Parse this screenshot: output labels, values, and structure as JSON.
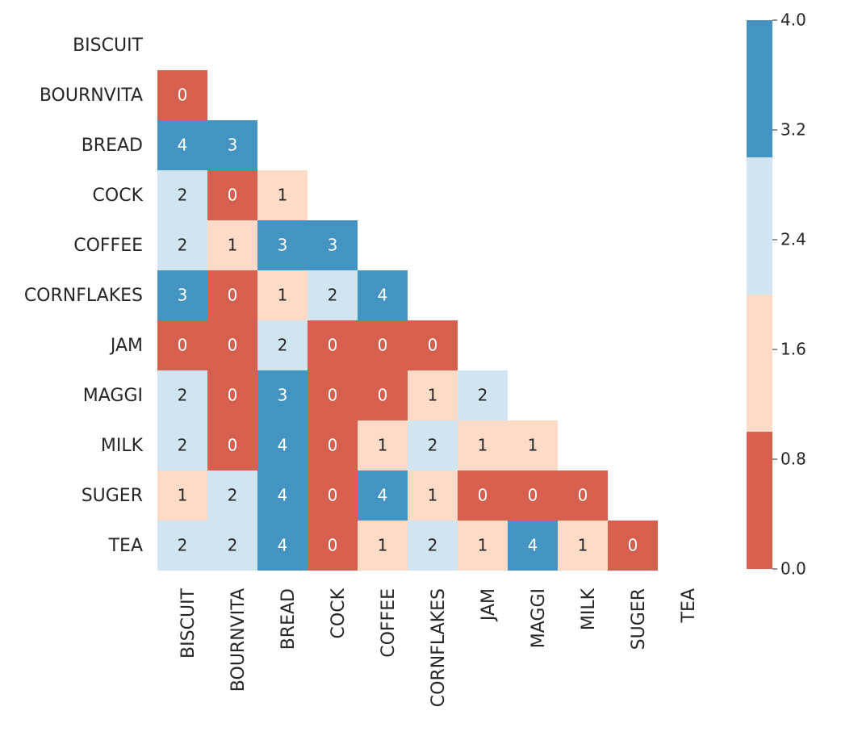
{
  "chart_data": {
    "type": "heatmap",
    "title": "",
    "xlabel": "",
    "ylabel": "",
    "categories": [
      "BISCUIT",
      "BOURNVITA",
      "BREAD",
      "COCK",
      "COFFEE",
      "CORNFLAKES",
      "JAM",
      "MAGGI",
      "MILK",
      "SUGER",
      "TEA"
    ],
    "matrix": [
      [
        null,
        null,
        null,
        null,
        null,
        null,
        null,
        null,
        null,
        null,
        null
      ],
      [
        0,
        null,
        null,
        null,
        null,
        null,
        null,
        null,
        null,
        null,
        null
      ],
      [
        4,
        3,
        null,
        null,
        null,
        null,
        null,
        null,
        null,
        null,
        null
      ],
      [
        2,
        0,
        1,
        null,
        null,
        null,
        null,
        null,
        null,
        null,
        null
      ],
      [
        2,
        1,
        3,
        3,
        null,
        null,
        null,
        null,
        null,
        null,
        null
      ],
      [
        3,
        0,
        1,
        2,
        4,
        null,
        null,
        null,
        null,
        null,
        null
      ],
      [
        0,
        0,
        2,
        0,
        0,
        0,
        null,
        null,
        null,
        null,
        null
      ],
      [
        2,
        0,
        3,
        0,
        0,
        1,
        2,
        null,
        null,
        null,
        null
      ],
      [
        2,
        0,
        4,
        0,
        1,
        2,
        1,
        1,
        null,
        null,
        null
      ],
      [
        1,
        2,
        4,
        0,
        4,
        1,
        0,
        0,
        0,
        null,
        null
      ],
      [
        2,
        2,
        4,
        0,
        1,
        2,
        1,
        4,
        1,
        0,
        null
      ]
    ],
    "mask": "upper-triangle",
    "colorbar": {
      "range": [
        0.0,
        4.0
      ],
      "ticks": [
        "0.0",
        "0.8",
        "1.6",
        "2.4",
        "3.2",
        "4.0"
      ],
      "bins": [
        {
          "from": 0.0,
          "to": 1.0,
          "color": "#d6604d"
        },
        {
          "from": 1.0,
          "to": 2.0,
          "color": "#fddbc7"
        },
        {
          "from": 2.0,
          "to": 3.0,
          "color": "#d1e5f0"
        },
        {
          "from": 3.0,
          "to": 4.0,
          "color": "#4393c3"
        }
      ]
    },
    "value_colors": {
      "0": "#d6604d",
      "1": "#fddbc7",
      "2": "#d1e5f0",
      "3": "#4393c3",
      "4": "#4393c3"
    },
    "annotation_text_colors": {
      "light": "#ffffff",
      "dark": "#262626"
    }
  }
}
